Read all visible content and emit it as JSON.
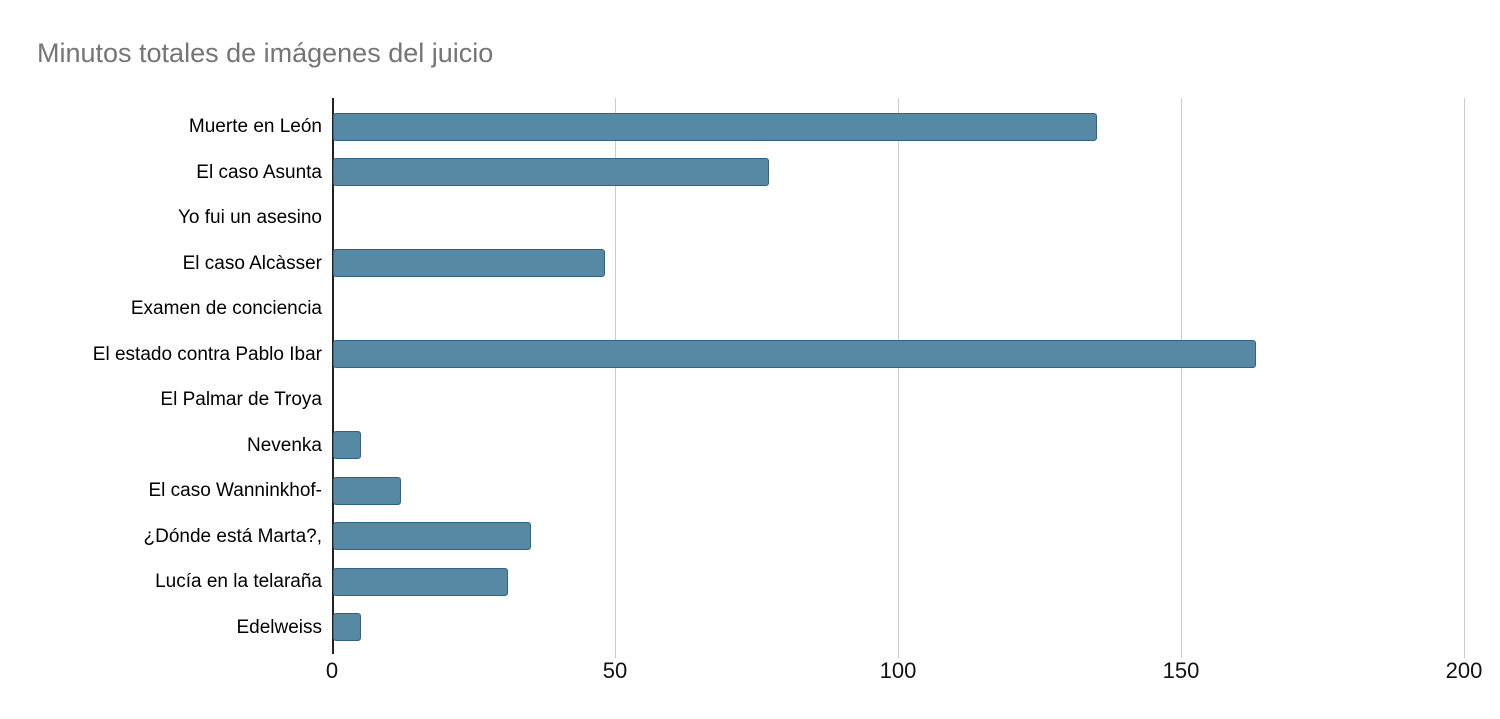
{
  "chart_data": {
    "type": "bar",
    "orientation": "horizontal",
    "title": "Minutos totales de imágenes del juicio",
    "xlabel": "",
    "ylabel": "",
    "categories": [
      "Muerte en León",
      "El caso Asunta",
      "Yo fui un asesino",
      "El caso Alcàsser",
      "Examen de conciencia",
      "El estado contra Pablo Ibar",
      "El Palmar de Troya",
      "Nevenka",
      "El caso Wanninkhof-",
      "¿Dónde está Marta?,",
      "Lucía en la telaraña",
      "Edelweiss"
    ],
    "values": [
      135,
      77,
      0,
      48,
      0,
      163,
      0,
      5,
      12,
      35,
      31,
      5
    ],
    "xlim": [
      0,
      200
    ],
    "xticks": [
      0,
      50,
      100,
      150,
      200
    ],
    "grid": true,
    "legend": false,
    "colors": {
      "bar_fill": "#5789a4",
      "bar_border": "#2f6486",
      "title_text": "#757575",
      "axis_line": "#212121",
      "gridline": "#cccccc",
      "label_text": "#000000"
    }
  }
}
